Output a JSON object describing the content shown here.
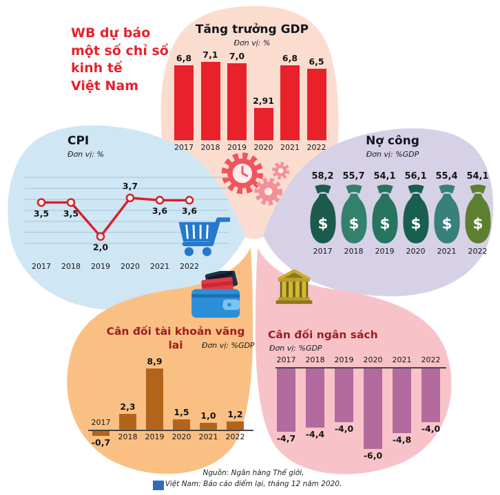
{
  "header": {
    "title_lines": [
      "WB dự báo",
      "một số chỉ số",
      "kinh tế",
      "Việt Nam"
    ]
  },
  "footer": {
    "source_line1": "Nguồn: Ngân hàng Thế giới,",
    "source_line2": "Việt Nam: Báo cáo điểm lại, tháng 12 năm 2020."
  },
  "colors": {
    "accent_red": "#e8212b",
    "gdp_bar": "#e8212b",
    "cpi_line": "#d6222a",
    "cpi_grid": "#a9cde3",
    "current_bar": "#b3641c",
    "budget_bar": "#b36a9e",
    "petal_gdp": "#fbddd0",
    "petal_cpi": "#cfe6f4",
    "petal_debt": "#d7d1e8",
    "petal_current": "#fac083",
    "petal_budget": "#f7c3c9",
    "bag_colors": [
      "#1c5a4b",
      "#33806d",
      "#27745f",
      "#195f50",
      "#37807b",
      "#5d8030"
    ]
  },
  "chart_data": [
    {
      "id": "gdp",
      "type": "bar",
      "title": "Tăng trưởng GDP",
      "unit_label": "Đơn vị: %",
      "categories": [
        "2017",
        "2018",
        "2019",
        "2020",
        "2021",
        "2022"
      ],
      "values": [
        6.8,
        7.1,
        7.0,
        2.91,
        6.8,
        6.5
      ],
      "value_labels": [
        "6,8",
        "7,1",
        "7,0",
        "2,91",
        "6,8",
        "6,5"
      ],
      "ylim": [
        0,
        7.5
      ],
      "legend": "none",
      "grid": false
    },
    {
      "id": "cpi",
      "type": "line",
      "title": "CPI",
      "unit_label": "Đơn vị: %",
      "categories": [
        "2017",
        "2018",
        "2019",
        "2020",
        "2021",
        "2022"
      ],
      "values": [
        3.5,
        3.5,
        2.0,
        3.7,
        3.6,
        3.6
      ],
      "value_labels": [
        "3,5",
        "3,5",
        "2,0",
        "3,7",
        "3,6",
        "3,6"
      ],
      "label_positions": [
        "below",
        "below",
        "below",
        "above",
        "below",
        "below"
      ],
      "ylim": [
        1.5,
        4.2
      ],
      "legend": "none",
      "grid": true
    },
    {
      "id": "public_debt",
      "type": "pictogram",
      "title": "Nợ công",
      "unit_label": "Đơn vị: %GDP",
      "icon": "money-bag-icon",
      "categories": [
        "2017",
        "2018",
        "2019",
        "2020",
        "2021",
        "2022"
      ],
      "values": [
        58.2,
        55.7,
        54.1,
        56.1,
        55.4,
        54.1
      ],
      "value_labels": [
        "58,2",
        "55,7",
        "54,1",
        "56,1",
        "55,4",
        "54,1"
      ]
    },
    {
      "id": "current_account",
      "type": "bar",
      "title": "Cân đối tài khoản vãng lai",
      "unit_label": "Đơn vị: %GDP",
      "categories": [
        "2017",
        "2018",
        "2019",
        "2020",
        "2021",
        "2022"
      ],
      "values": [
        -0.7,
        2.3,
        8.9,
        1.5,
        1.0,
        1.2
      ],
      "value_labels": [
        "-0,7",
        "2,3",
        "8,9",
        "1,5",
        "1,0",
        "1,2"
      ],
      "ylim": [
        -1.5,
        9.5
      ],
      "legend": "none",
      "grid": false
    },
    {
      "id": "budget",
      "type": "bar",
      "title": "Cân đối ngân sách",
      "unit_label": "Đơn vị: %GDP",
      "categories": [
        "2017",
        "2018",
        "2019",
        "2020",
        "2021",
        "2022"
      ],
      "values": [
        -4.7,
        -4.4,
        -4.0,
        -6.0,
        -4.8,
        -4.0
      ],
      "value_labels": [
        "-4,7",
        "-4,4",
        "-4,0",
        "-6,0",
        "-4,8",
        "-4,0"
      ],
      "ylim": [
        -6.5,
        0
      ],
      "legend": "none",
      "grid": false
    }
  ]
}
